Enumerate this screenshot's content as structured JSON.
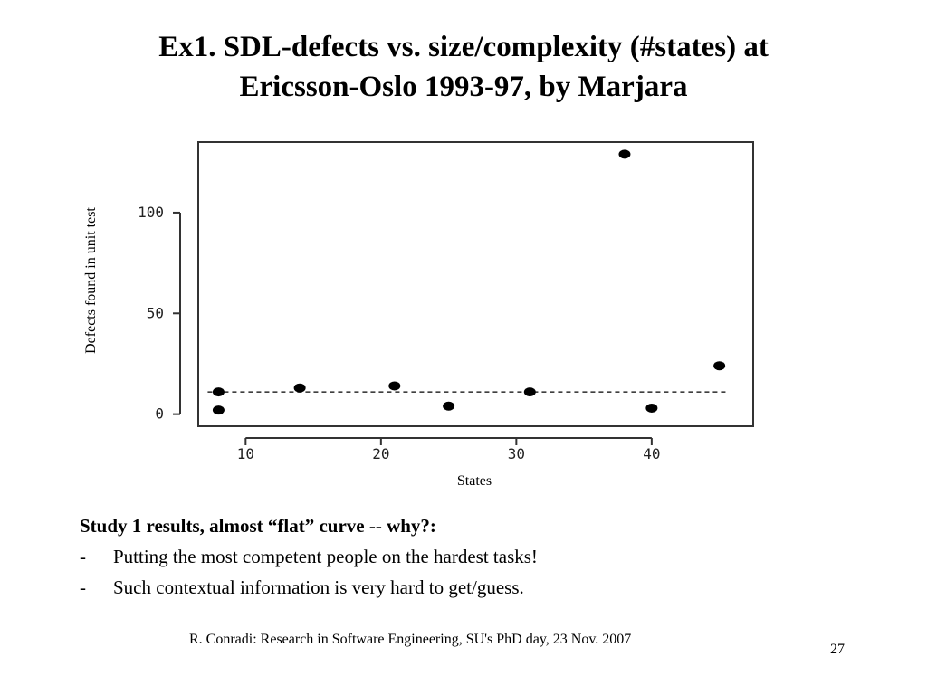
{
  "slide": {
    "title_line1": "Ex1. SDL-defects vs. size/complexity (#states) at",
    "title_line2": "Ericsson-Oslo 1993-97, by Marjara",
    "notes_heading": "Study 1 results, almost “flat” curve -- why?:",
    "bullets": [
      "Putting the most competent people on the hardest tasks!",
      "Such contextual information is very hard to get/guess."
    ],
    "bullet_marker": "-",
    "footer": "R. Conradi: Research in Software Engineering, SU's  PhD day, 23 Nov. 2007",
    "page_number": "27"
  },
  "chart_data": {
    "type": "scatter",
    "xlabel": "States",
    "ylabel": "Defects found in unit test",
    "x_ticks": [
      10,
      20,
      30,
      40
    ],
    "y_ticks": [
      0,
      50,
      100
    ],
    "xlim": [
      6.5,
      47.5
    ],
    "ylim": [
      -6,
      135
    ],
    "points": [
      {
        "x": 8,
        "y": 11
      },
      {
        "x": 8,
        "y": 2
      },
      {
        "x": 14,
        "y": 13
      },
      {
        "x": 21,
        "y": 14
      },
      {
        "x": 25,
        "y": 4
      },
      {
        "x": 31,
        "y": 11
      },
      {
        "x": 38,
        "y": 129
      },
      {
        "x": 40,
        "y": 3
      },
      {
        "x": 45,
        "y": 24
      }
    ],
    "reference_line": {
      "y": 11,
      "x_from": 8,
      "x_to": 45,
      "style": "dashed"
    },
    "grid": false,
    "colors": {
      "points": "#000000",
      "axis": "#333333"
    }
  }
}
